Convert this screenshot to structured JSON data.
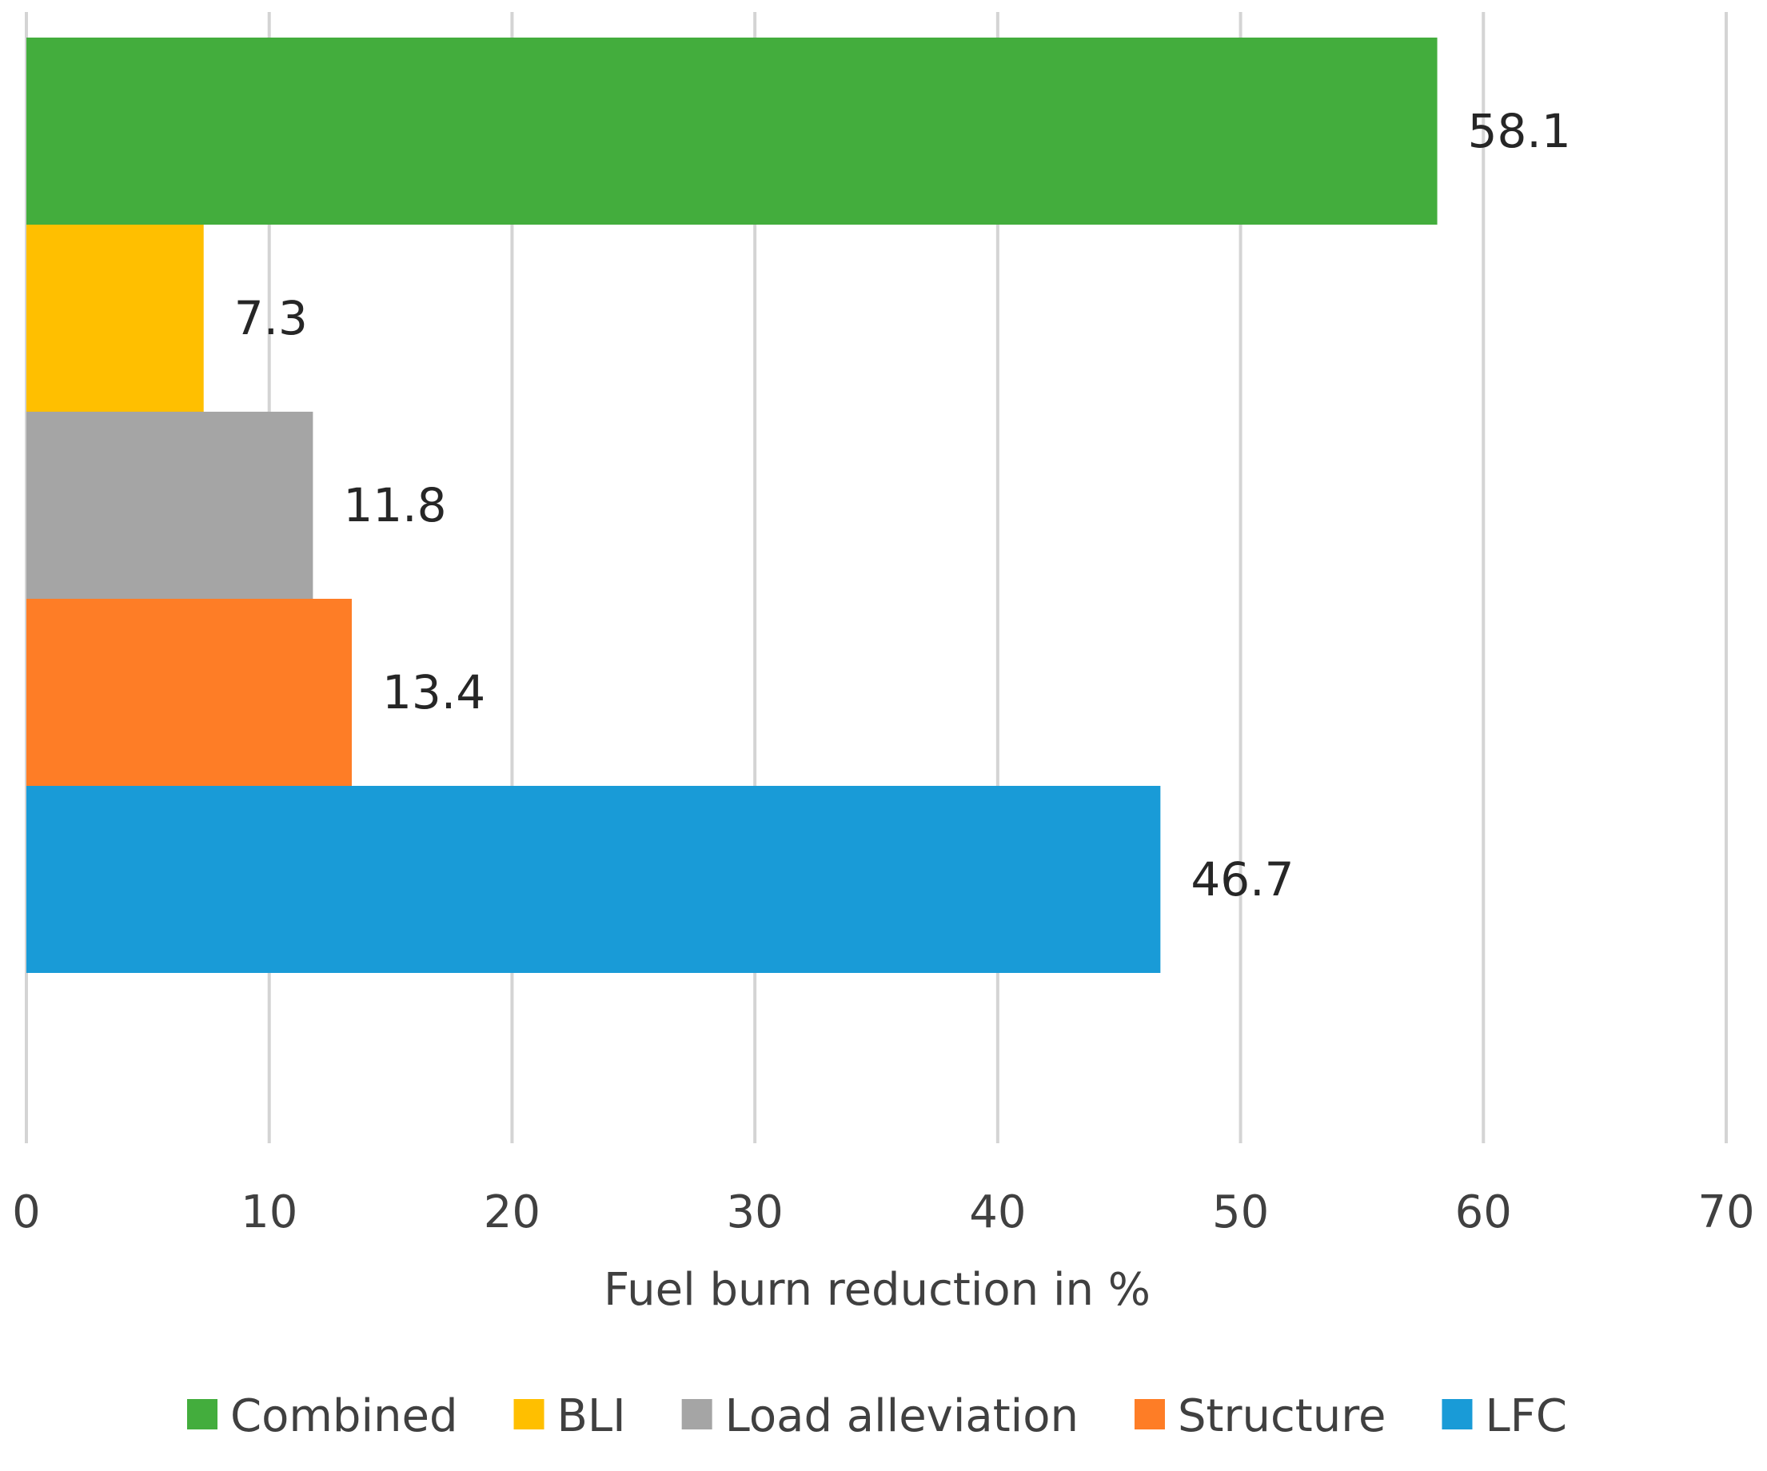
{
  "chart_data": {
    "type": "bar",
    "orientation": "horizontal",
    "title": "",
    "xlabel": "Fuel burn reduction in %",
    "ylabel": "",
    "xlim": [
      0,
      70
    ],
    "xticks": [
      0,
      10,
      20,
      30,
      40,
      50,
      60,
      70
    ],
    "grid": true,
    "legend_position": "bottom",
    "series": [
      {
        "name": "Combined",
        "value": 58.1,
        "label": "58.1",
        "color": "#43ad3d"
      },
      {
        "name": "BLI",
        "value": 7.3,
        "label": "7.3",
        "color": "#ffbf00"
      },
      {
        "name": "Load alleviation",
        "value": 11.8,
        "label": "11.8",
        "color": "#a5a5a5"
      },
      {
        "name": "Structure",
        "value": 13.4,
        "label": "13.4",
        "color": "#fe7d26"
      },
      {
        "name": "LFC",
        "value": 46.7,
        "label": "46.7",
        "color": "#199bd7"
      }
    ]
  }
}
